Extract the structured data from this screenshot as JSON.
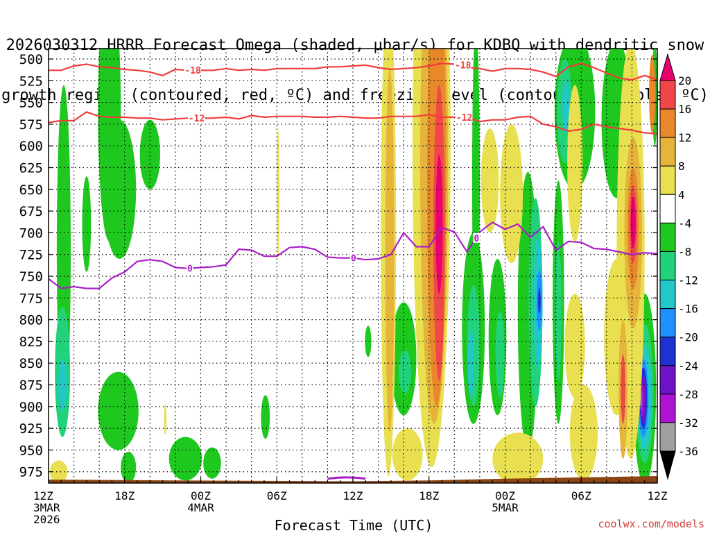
{
  "chart_data": {
    "type": "time-height",
    "title_line1": "2026030312 HRRR Forecast Omega (shaded, μbar/s) for KDBQ with dendritic snow",
    "title_line2": "growth region (contoured, red, ºC) and freezing level (contoured, purple, ºC)",
    "xlabel": "Forecast Time (UTC)",
    "credit": "coolwx.com/models",
    "x_range_hours": [
      0,
      48
    ],
    "y_range_hPa": [
      488,
      988
    ],
    "y_ticks": [
      "500",
      "525",
      "550",
      "575",
      "600",
      "625",
      "650",
      "675",
      "700",
      "725",
      "750",
      "775",
      "800",
      "825",
      "850",
      "875",
      "900",
      "925",
      "950",
      "975"
    ],
    "x_ticks": [
      {
        "h": 0,
        "label": "12Z",
        "sub1": "3MAR",
        "sub2": "2026"
      },
      {
        "h": 6,
        "label": "18Z",
        "sub1": "",
        "sub2": ""
      },
      {
        "h": 12,
        "label": "00Z",
        "sub1": "4MAR",
        "sub2": ""
      },
      {
        "h": 18,
        "label": "06Z",
        "sub1": "",
        "sub2": ""
      },
      {
        "h": 24,
        "label": "12Z",
        "sub1": "",
        "sub2": ""
      },
      {
        "h": 30,
        "label": "18Z",
        "sub1": "",
        "sub2": ""
      },
      {
        "h": 36,
        "label": "00Z",
        "sub1": "5MAR",
        "sub2": ""
      },
      {
        "h": 42,
        "label": "06Z",
        "sub1": "",
        "sub2": ""
      },
      {
        "h": 48,
        "label": "12Z",
        "sub1": "",
        "sub2": ""
      }
    ],
    "colorbar": {
      "labels": [
        "20",
        "16",
        "12",
        "8",
        "4",
        "-4",
        "-8",
        "-12",
        "-16",
        "-20",
        "-24",
        "-28",
        "-32",
        "-36"
      ],
      "colors": [
        "#e8006e",
        "#f04848",
        "#e8882a",
        "#e6b43a",
        "#e8e050",
        "#ffffff",
        "#1ec81e",
        "#22d27a",
        "#22c8c8",
        "#1e90ff",
        "#1e32d2",
        "#6e14c8",
        "#aa14d2",
        "#a0a0a0",
        "#000000"
      ],
      "shade_colors": {
        "pos20": "#e8006e",
        "pos16": "#f04848",
        "pos12": "#e8882a",
        "pos8": "#e6b43a",
        "pos4": "#e8e050",
        "neg4": "#1ec81e",
        "neg8": "#22d27a",
        "neg12": "#22c8c8",
        "neg16": "#1e90ff",
        "neg20": "#1e32d2",
        "neg24": "#6e14c8",
        "neg28": "#aa14d2",
        "neg32": "#a0a0a0"
      }
    },
    "contours": [
      {
        "name": "-18 degC",
        "label": "-18",
        "color": "#f03c3c",
        "points": [
          [
            0,
            513
          ],
          [
            1,
            513
          ],
          [
            2,
            508
          ],
          [
            3,
            506
          ],
          [
            4,
            509
          ],
          [
            5,
            510
          ],
          [
            6,
            512
          ],
          [
            7,
            513
          ],
          [
            8,
            515
          ],
          [
            9,
            519
          ],
          [
            10,
            512
          ],
          [
            11,
            513
          ],
          [
            12,
            513
          ],
          [
            13,
            513
          ],
          [
            14,
            511
          ],
          [
            15,
            513
          ],
          [
            16,
            512
          ],
          [
            17,
            513
          ],
          [
            18,
            511
          ],
          [
            19,
            511
          ],
          [
            20,
            511
          ],
          [
            21,
            511
          ],
          [
            22,
            509
          ],
          [
            23,
            509
          ],
          [
            24,
            508
          ],
          [
            25,
            507
          ],
          [
            26,
            510
          ],
          [
            27,
            512
          ],
          [
            28,
            511
          ],
          [
            29,
            510
          ],
          [
            30,
            508
          ],
          [
            31,
            505
          ],
          [
            32,
            506
          ],
          [
            33,
            510
          ],
          [
            34,
            511
          ],
          [
            35,
            514
          ],
          [
            36,
            511
          ],
          [
            37,
            511
          ],
          [
            38,
            512
          ],
          [
            39,
            515
          ],
          [
            40,
            520
          ],
          [
            41,
            509
          ],
          [
            42,
            505
          ],
          [
            43,
            510
          ],
          [
            44,
            516
          ],
          [
            45,
            522
          ],
          [
            46,
            524
          ],
          [
            47,
            519
          ],
          [
            48,
            524
          ]
        ],
        "label_positions_h": [
          10.9,
          32.2
        ]
      },
      {
        "name": "-12 degC",
        "label": "-12",
        "color": "#f03c3c",
        "points": [
          [
            0,
            573
          ],
          [
            1,
            571
          ],
          [
            2,
            571
          ],
          [
            3,
            561
          ],
          [
            4,
            566
          ],
          [
            5,
            567
          ],
          [
            6,
            567
          ],
          [
            7,
            568
          ],
          [
            8,
            568
          ],
          [
            9,
            570
          ],
          [
            10,
            569
          ],
          [
            11,
            568
          ],
          [
            12,
            568
          ],
          [
            13,
            568
          ],
          [
            14,
            567
          ],
          [
            15,
            569
          ],
          [
            16,
            565
          ],
          [
            17,
            567
          ],
          [
            18,
            566
          ],
          [
            19,
            566
          ],
          [
            20,
            566
          ],
          [
            21,
            567
          ],
          [
            22,
            567
          ],
          [
            23,
            566
          ],
          [
            24,
            567
          ],
          [
            25,
            568
          ],
          [
            26,
            568
          ],
          [
            27,
            566
          ],
          [
            28,
            566
          ],
          [
            29,
            566
          ],
          [
            30,
            564
          ],
          [
            31,
            567
          ],
          [
            32,
            567
          ],
          [
            33,
            567
          ],
          [
            34,
            572
          ],
          [
            35,
            570
          ],
          [
            36,
            570
          ],
          [
            37,
            567
          ],
          [
            38,
            566
          ],
          [
            39,
            575
          ],
          [
            40,
            578
          ],
          [
            41,
            583
          ],
          [
            42,
            581
          ],
          [
            43,
            575
          ],
          [
            44,
            578
          ],
          [
            45,
            580
          ],
          [
            46,
            582
          ],
          [
            47,
            585
          ],
          [
            48,
            586
          ]
        ],
        "label_positions_h": [
          11.2,
          32.3
        ]
      },
      {
        "name": "0 degC freezing level",
        "label": "0",
        "color": "#aa1ec8",
        "points": [
          [
            0,
            753
          ],
          [
            1,
            764
          ],
          [
            2,
            762
          ],
          [
            3,
            764
          ],
          [
            4,
            764
          ],
          [
            5,
            752
          ],
          [
            6,
            745
          ],
          [
            7,
            733
          ],
          [
            8,
            731
          ],
          [
            9,
            733
          ],
          [
            10,
            740
          ],
          [
            11,
            741
          ],
          [
            12,
            740
          ],
          [
            13,
            739
          ],
          [
            14,
            737
          ],
          [
            15,
            719
          ],
          [
            16,
            720
          ],
          [
            17,
            727
          ],
          [
            18,
            727
          ],
          [
            19,
            717
          ],
          [
            20,
            716
          ],
          [
            21,
            719
          ],
          [
            22,
            728
          ],
          [
            23,
            729
          ],
          [
            24,
            729
          ],
          [
            25,
            731
          ],
          [
            26,
            730
          ],
          [
            27,
            725
          ],
          [
            28,
            700
          ],
          [
            29,
            716
          ],
          [
            30,
            716
          ],
          [
            31,
            694
          ],
          [
            32,
            699
          ],
          [
            33,
            722
          ],
          [
            34,
            699
          ],
          [
            35,
            688
          ],
          [
            36,
            696
          ],
          [
            37,
            690
          ],
          [
            38,
            705
          ],
          [
            39,
            693
          ],
          [
            40,
            720
          ],
          [
            41,
            710
          ],
          [
            42,
            711
          ],
          [
            43,
            718
          ],
          [
            44,
            719
          ],
          [
            45,
            722
          ],
          [
            46,
            725
          ],
          [
            47,
            723
          ],
          [
            48,
            724
          ]
        ],
        "label_positions_h": [
          11.1,
          24.0,
          33.7
        ]
      },
      {
        "name": "terrain",
        "label": "",
        "color": "#8b4513",
        "points": []
      },
      {
        "name": "near-surface purple",
        "label": "",
        "color": "#aa1ec8",
        "points": []
      }
    ]
  }
}
